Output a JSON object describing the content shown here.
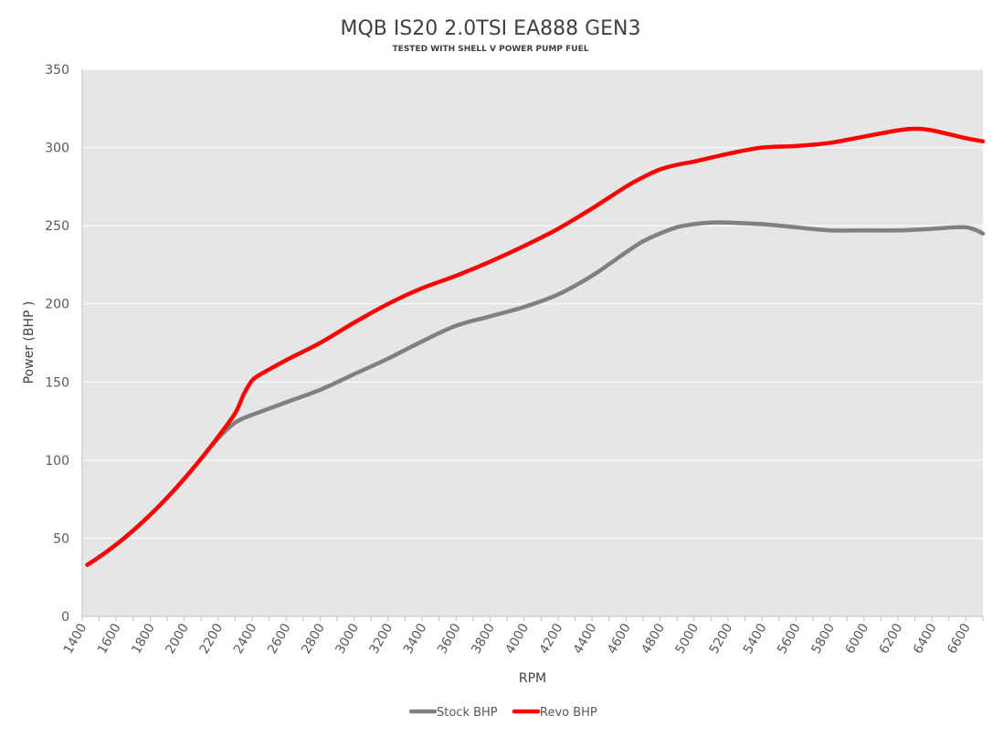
{
  "chart_data": {
    "type": "line",
    "title": "MQB IS20 2.0TSI EA888  GEN3",
    "subtitle": "TESTED WITH SHELL V POWER PUMP FUEL",
    "xlabel": "RPM",
    "ylabel": "Power (BHP )",
    "xlim": [
      1400,
      6700
    ],
    "ylim": [
      0,
      350
    ],
    "x_ticks": [
      1400,
      1600,
      1800,
      2000,
      2200,
      2400,
      2600,
      2800,
      3000,
      3200,
      3400,
      3600,
      3800,
      4000,
      4200,
      4400,
      4600,
      4800,
      5000,
      5200,
      5400,
      5600,
      5800,
      6000,
      6200,
      6400,
      6600
    ],
    "x_tick_labels": [
      "1400",
      "1600",
      "1800",
      "2000",
      "2200",
      "2400",
      "2600",
      "2800",
      "3000",
      "3200",
      "3400",
      "3600",
      "3800",
      "4000",
      "4200",
      "4400",
      "4600",
      "4800",
      "5000",
      "5200",
      "5400",
      "5600",
      "5800",
      "6000",
      "6200",
      "6400",
      "6600"
    ],
    "y_ticks": [
      0,
      50,
      100,
      150,
      200,
      250,
      300,
      350
    ],
    "y_tick_labels": [
      "0",
      "50",
      "100",
      "150",
      "200",
      "250",
      "300",
      "350"
    ],
    "grid": true,
    "legend_position": "bottom",
    "background_color": "#e6e6e6",
    "series": [
      {
        "name": "Stock BHP",
        "color": "#808080",
        "x": [
          1430,
          1500,
          1600,
          1700,
          1800,
          1900,
          2000,
          2100,
          2200,
          2300,
          2400,
          2500,
          2600,
          2800,
          3000,
          3200,
          3400,
          3600,
          3800,
          4000,
          4200,
          4400,
          4600,
          4700,
          4800,
          4900,
          5000,
          5100,
          5200,
          5400,
          5600,
          5800,
          6000,
          6200,
          6400,
          6600,
          6700
        ],
        "values": [
          33,
          38,
          46,
          55,
          65,
          76,
          88,
          101,
          114,
          124,
          129,
          133,
          137,
          145,
          155,
          165,
          176,
          186,
          192,
          198,
          206,
          218,
          233,
          240,
          245,
          249,
          251,
          252,
          252,
          251,
          249,
          247,
          247,
          247,
          248,
          249,
          245
        ]
      },
      {
        "name": "Revo BHP",
        "color": "#ff0000",
        "x": [
          1430,
          1500,
          1600,
          1700,
          1800,
          1900,
          2000,
          2100,
          2200,
          2300,
          2350,
          2400,
          2450,
          2500,
          2600,
          2800,
          3000,
          3200,
          3400,
          3600,
          3800,
          4000,
          4200,
          4400,
          4600,
          4700,
          4800,
          4900,
          5000,
          5200,
          5400,
          5600,
          5800,
          6000,
          6200,
          6300,
          6400,
          6600,
          6700
        ],
        "values": [
          33,
          38,
          46,
          55,
          65,
          76,
          88,
          101,
          115,
          130,
          142,
          151,
          155,
          158,
          164,
          175,
          188,
          200,
          210,
          218,
          227,
          237,
          248,
          261,
          275,
          281,
          286,
          289,
          291,
          296,
          300,
          301,
          303,
          307,
          311,
          312,
          311,
          306,
          304
        ]
      }
    ]
  }
}
